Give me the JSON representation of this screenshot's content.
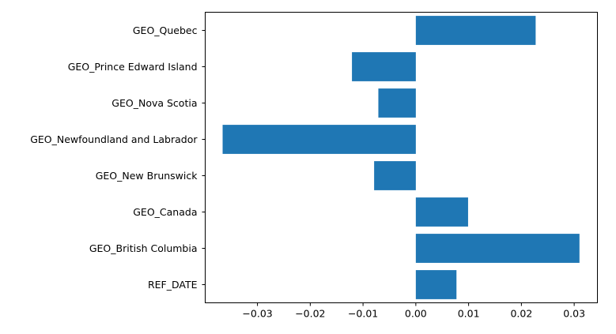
{
  "chart_data": {
    "type": "bar",
    "orientation": "horizontal",
    "title": "",
    "xlabel": "",
    "ylabel": "",
    "categories": [
      "REF_DATE",
      "GEO_British Columbia",
      "GEO_Canada",
      "GEO_New Brunswick",
      "GEO_Newfoundland and Labrador",
      "GEO_Nova Scotia",
      "GEO_Prince Edward Island",
      "GEO_Quebec"
    ],
    "values": [
      0.0077,
      0.031,
      0.0099,
      -0.0079,
      -0.0366,
      -0.0071,
      -0.0121,
      0.0227
    ],
    "xlim": [
      -0.0399,
      0.0344
    ],
    "xticks": [
      -0.03,
      -0.02,
      -0.01,
      0.0,
      0.01,
      0.02,
      0.03
    ],
    "xtick_labels": [
      "−0.03",
      "−0.02",
      "−0.01",
      "0.00",
      "0.01",
      "0.02",
      "0.03"
    ],
    "bar_color": "#1f77b4",
    "grid": false,
    "legend": "none"
  }
}
